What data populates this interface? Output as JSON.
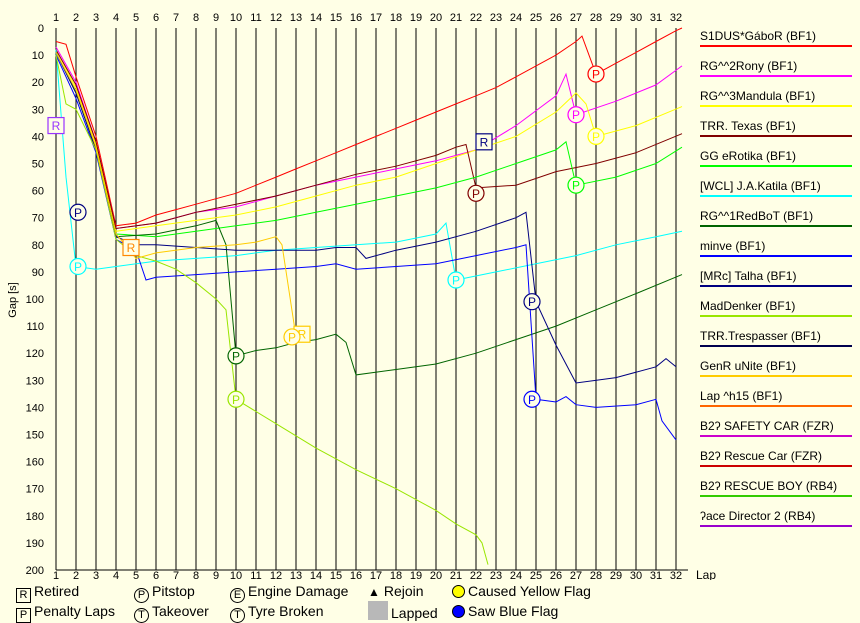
{
  "chart_data": {
    "type": "line",
    "xlabel": "Lap",
    "ylabel": "Gap [s]",
    "x": [
      1,
      2,
      3,
      4,
      5,
      6,
      7,
      8,
      9,
      10,
      11,
      12,
      13,
      14,
      15,
      16,
      17,
      18,
      19,
      20,
      21,
      22,
      23,
      24,
      25,
      26,
      27,
      28,
      29,
      30,
      31,
      32
    ],
    "xlim": [
      1,
      32.3
    ],
    "ylim": [
      0,
      200
    ],
    "yticks": [
      0,
      10,
      20,
      30,
      40,
      50,
      60,
      70,
      80,
      90,
      100,
      110,
      120,
      130,
      140,
      150,
      160,
      170,
      180,
      190,
      200
    ],
    "y_inverted": true,
    "grid": "vertical",
    "legend_position": "right",
    "series": [
      {
        "name": "S1DUS*GáboR (BF1)",
        "color": "#ff0000",
        "points": [
          [
            1,
            5
          ],
          [
            1.5,
            6
          ],
          [
            2,
            18
          ],
          [
            3,
            40
          ],
          [
            4,
            73
          ],
          [
            5,
            72
          ],
          [
            6,
            69
          ],
          [
            7,
            67
          ],
          [
            8,
            65
          ],
          [
            9,
            63
          ],
          [
            10,
            61
          ],
          [
            11,
            58
          ],
          [
            12,
            55
          ],
          [
            13,
            52
          ],
          [
            14,
            49
          ],
          [
            15,
            46
          ],
          [
            16,
            43
          ],
          [
            17,
            40
          ],
          [
            18,
            37
          ],
          [
            19,
            34
          ],
          [
            20,
            31
          ],
          [
            21,
            28
          ],
          [
            22,
            25
          ],
          [
            23,
            22
          ],
          [
            24,
            18
          ],
          [
            25,
            14
          ],
          [
            26,
            10
          ],
          [
            27,
            5
          ],
          [
            27.3,
            3
          ],
          [
            28,
            17
          ],
          [
            29,
            13
          ],
          [
            30,
            9
          ],
          [
            31,
            5
          ],
          [
            32,
            1
          ],
          [
            32.3,
            0
          ]
        ]
      },
      {
        "name": "RG^^2Rony (BF1)",
        "color": "#ff00ff",
        "points": [
          [
            1,
            7
          ],
          [
            2,
            20
          ],
          [
            3,
            42
          ],
          [
            4,
            74
          ],
          [
            6,
            72
          ],
          [
            8,
            68
          ],
          [
            10,
            66
          ],
          [
            12,
            62
          ],
          [
            14,
            58
          ],
          [
            16,
            55
          ],
          [
            18,
            52
          ],
          [
            20,
            49
          ],
          [
            22,
            45
          ],
          [
            24,
            36
          ],
          [
            26,
            25
          ],
          [
            26.5,
            17
          ],
          [
            27,
            32
          ],
          [
            29,
            27
          ],
          [
            31,
            21
          ],
          [
            32.3,
            14
          ]
        ]
      },
      {
        "name": "RG^^3Mandula (BF1)",
        "color": "#ffff00",
        "points": [
          [
            1,
            8
          ],
          [
            2,
            22
          ],
          [
            3,
            43
          ],
          [
            4,
            75
          ],
          [
            6,
            73
          ],
          [
            8,
            71
          ],
          [
            10,
            69
          ],
          [
            12,
            66
          ],
          [
            14,
            62
          ],
          [
            16,
            58
          ],
          [
            18,
            55
          ],
          [
            20,
            50
          ],
          [
            22,
            45
          ],
          [
            24,
            40
          ],
          [
            26,
            31
          ],
          [
            27,
            24
          ],
          [
            27.5,
            28
          ],
          [
            28,
            40
          ],
          [
            30,
            36
          ],
          [
            32.3,
            29
          ]
        ]
      },
      {
        "name": "TRR. Texas (BF1)",
        "color": "#800000",
        "points": [
          [
            1,
            8
          ],
          [
            2,
            21
          ],
          [
            3,
            42
          ],
          [
            4,
            74
          ],
          [
            6,
            72
          ],
          [
            8,
            68
          ],
          [
            10,
            65
          ],
          [
            12,
            62
          ],
          [
            14,
            58
          ],
          [
            16,
            54
          ],
          [
            18,
            51
          ],
          [
            20,
            47
          ],
          [
            21,
            44
          ],
          [
            21.5,
            43
          ],
          [
            22,
            59
          ],
          [
            24,
            58
          ],
          [
            26,
            53
          ],
          [
            28,
            50
          ],
          [
            30,
            46
          ],
          [
            32.3,
            39
          ]
        ]
      },
      {
        "name": "GG eRotika (BF1)",
        "color": "#00ff00",
        "points": [
          [
            1,
            9
          ],
          [
            2,
            24
          ],
          [
            3,
            45
          ],
          [
            4,
            76
          ],
          [
            6,
            77
          ],
          [
            8,
            75
          ],
          [
            10,
            73
          ],
          [
            12,
            71
          ],
          [
            14,
            68
          ],
          [
            16,
            65
          ],
          [
            18,
            62
          ],
          [
            20,
            59
          ],
          [
            22,
            55
          ],
          [
            24,
            50
          ],
          [
            26,
            45
          ],
          [
            26.5,
            42
          ],
          [
            27,
            58
          ],
          [
            29,
            55
          ],
          [
            31,
            50
          ],
          [
            32.3,
            44
          ]
        ]
      },
      {
        "name": "[WCL] J.A.Katila (BF1)",
        "color": "#00ffff",
        "points": [
          [
            1,
            8
          ],
          [
            1.5,
            55
          ],
          [
            2,
            88
          ],
          [
            3,
            89
          ],
          [
            4,
            88
          ],
          [
            6,
            86
          ],
          [
            8,
            85
          ],
          [
            10,
            84
          ],
          [
            12,
            82
          ],
          [
            14,
            81
          ],
          [
            16,
            80
          ],
          [
            18,
            79
          ],
          [
            20,
            76
          ],
          [
            20.5,
            72
          ],
          [
            21,
            93
          ],
          [
            23,
            90
          ],
          [
            25,
            87
          ],
          [
            27,
            84
          ],
          [
            29,
            80
          ],
          [
            31,
            77
          ],
          [
            32.3,
            75
          ]
        ]
      },
      {
        "name": "RG^^1RedBoT (BF1)",
        "color": "#006400",
        "points": [
          [
            1,
            9
          ],
          [
            2,
            24
          ],
          [
            3,
            45
          ],
          [
            4,
            77
          ],
          [
            6,
            76
          ],
          [
            8,
            73
          ],
          [
            9,
            71
          ],
          [
            9.5,
            80
          ],
          [
            10,
            121
          ],
          [
            11,
            119
          ],
          [
            12,
            118
          ],
          [
            13,
            116
          ],
          [
            14,
            115
          ],
          [
            15,
            113
          ],
          [
            15.5,
            116
          ],
          [
            16,
            128
          ],
          [
            18,
            126
          ],
          [
            20,
            124
          ],
          [
            22,
            120
          ],
          [
            24,
            115
          ],
          [
            26,
            110
          ],
          [
            28,
            104
          ],
          [
            30,
            98
          ],
          [
            32.3,
            91
          ]
        ]
      },
      {
        "name": "minve (BF1)",
        "color": "#0000ff",
        "points": [
          [
            1,
            10
          ],
          [
            2,
            26
          ],
          [
            3,
            46
          ],
          [
            4,
            78
          ],
          [
            4.5,
            80
          ],
          [
            5,
            82
          ],
          [
            5.5,
            93
          ],
          [
            6,
            92
          ],
          [
            8,
            91
          ],
          [
            10,
            90
          ],
          [
            12,
            89
          ],
          [
            14,
            88
          ],
          [
            15,
            87
          ],
          [
            16,
            89
          ],
          [
            18,
            88
          ],
          [
            20,
            87
          ],
          [
            22,
            84
          ],
          [
            24,
            81
          ],
          [
            24.5,
            80
          ],
          [
            25,
            137
          ],
          [
            26,
            138
          ],
          [
            26.5,
            136
          ],
          [
            27,
            139
          ],
          [
            28,
            140
          ],
          [
            30,
            139
          ],
          [
            31,
            137
          ],
          [
            31.3,
            145
          ],
          [
            32,
            152
          ]
        ]
      },
      {
        "name": "[MRc] Talha (BF1)",
        "color": "#000080",
        "points": [
          [
            1,
            9
          ],
          [
            2,
            24
          ],
          [
            3,
            45
          ],
          [
            4,
            77
          ],
          [
            5,
            80
          ],
          [
            6,
            80
          ],
          [
            8,
            81
          ],
          [
            10,
            82
          ],
          [
            12,
            82
          ],
          [
            14,
            82
          ],
          [
            15,
            81
          ],
          [
            16,
            81
          ],
          [
            16.5,
            85
          ],
          [
            18,
            82
          ],
          [
            20,
            79
          ],
          [
            22,
            75
          ],
          [
            24,
            70
          ],
          [
            24.5,
            68
          ],
          [
            25,
            101
          ],
          [
            26,
            117
          ],
          [
            27,
            131
          ],
          [
            29,
            129
          ],
          [
            31,
            125
          ],
          [
            31.5,
            122
          ],
          [
            32,
            125
          ]
        ]
      },
      {
        "name": "MadDenker (BF1)",
        "color": "#99e600",
        "points": [
          [
            1,
            10
          ],
          [
            1.5,
            28
          ],
          [
            2,
            30
          ],
          [
            3,
            45
          ],
          [
            4,
            78
          ],
          [
            5,
            84
          ],
          [
            6,
            86
          ],
          [
            7,
            89
          ],
          [
            8,
            94
          ],
          [
            9,
            100
          ],
          [
            9.5,
            104
          ],
          [
            10,
            137
          ],
          [
            12,
            146
          ],
          [
            14,
            155
          ],
          [
            16,
            163
          ],
          [
            18,
            170
          ],
          [
            20,
            178
          ],
          [
            21,
            183
          ],
          [
            22,
            187
          ],
          [
            22.3,
            190
          ],
          [
            22.6,
            198
          ]
        ]
      },
      {
        "name": "TRR.Trespasser (BF1)",
        "color": "#00004d",
        "points": []
      },
      {
        "name": "GenR uNite (BF1)",
        "color": "#ffcc00",
        "points": [
          [
            1,
            9
          ],
          [
            2,
            23
          ],
          [
            3,
            44
          ],
          [
            4,
            76
          ],
          [
            5,
            85
          ],
          [
            6,
            83
          ],
          [
            8,
            81
          ],
          [
            10,
            80
          ],
          [
            11,
            79
          ],
          [
            12,
            77
          ],
          [
            12.3,
            80
          ],
          [
            13,
            114
          ],
          [
            13.5,
            113
          ]
        ]
      },
      {
        "name": "Lap ^h15 (BF1)",
        "color": "#ff6600",
        "points": []
      },
      {
        "name": "B2ʔ SAFETY CAR (FZR)",
        "color": "#cc00cc",
        "points": []
      },
      {
        "name": "B2ʔ Rescue Car (FZR)",
        "color": "#cc0000",
        "points": []
      },
      {
        "name": "B2ʔ RESCUE BOY (RB4)",
        "color": "#33cc00",
        "points": []
      },
      {
        "name": "ʔace Director 2 (RB4)",
        "color": "#9900cc",
        "points": []
      }
    ],
    "markers": [
      {
        "type": "R",
        "lap": 1,
        "gap": 36,
        "color": "#9933ff"
      },
      {
        "type": "R",
        "lap": 4.75,
        "gap": 81,
        "color": "#ff8800"
      },
      {
        "type": "R",
        "lap": 13.3,
        "gap": 113,
        "color": "#ffcc00"
      },
      {
        "type": "R",
        "lap": 22.4,
        "gap": 42,
        "color": "#000080"
      },
      {
        "type": "P",
        "lap": 2.1,
        "gap": 68,
        "color": "#000080"
      },
      {
        "type": "P",
        "lap": 2.1,
        "gap": 88,
        "color": "#00ffff"
      },
      {
        "type": "P",
        "lap": 10,
        "gap": 121,
        "color": "#006400"
      },
      {
        "type": "P",
        "lap": 10,
        "gap": 137,
        "color": "#99e600"
      },
      {
        "type": "P",
        "lap": 12.8,
        "gap": 114,
        "color": "#ffcc00"
      },
      {
        "type": "P",
        "lap": 21,
        "gap": 93,
        "color": "#00ffff"
      },
      {
        "type": "P",
        "lap": 22,
        "gap": 61,
        "color": "#800000"
      },
      {
        "type": "P",
        "lap": 24.8,
        "gap": 101,
        "color": "#000080"
      },
      {
        "type": "P",
        "lap": 24.8,
        "gap": 137,
        "color": "#0000ff"
      },
      {
        "type": "P",
        "lap": 27,
        "gap": 32,
        "color": "#ff00ff"
      },
      {
        "type": "P",
        "lap": 27,
        "gap": 58,
        "color": "#00ff00"
      },
      {
        "type": "P",
        "lap": 28,
        "gap": 17,
        "color": "#ff0000"
      },
      {
        "type": "P",
        "lap": 28,
        "gap": 40,
        "color": "#ffff00"
      }
    ]
  },
  "key": {
    "retired": "Retired",
    "penalty": "Penalty Laps",
    "pitstop": "Pitstop",
    "takeover": "Takeover",
    "engine": "Engine Damage",
    "tyre": "Tyre Broken",
    "rejoin": "Rejoin",
    "lapped": "Lapped",
    "yellow": "Caused Yellow Flag",
    "blue": "Saw Blue Flag",
    "sym_r": "R",
    "sym_p": "P",
    "sym_pit": "P",
    "sym_t": "T",
    "sym_e": "E",
    "sym_ty": "T"
  }
}
